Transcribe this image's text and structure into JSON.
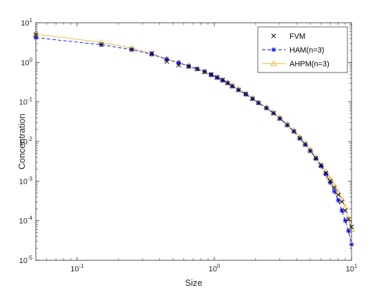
{
  "chart_data": {
    "type": "line",
    "xlabel": "Size",
    "ylabel": "Concentration",
    "xscale": "log",
    "yscale": "log",
    "xlim": [
      0.05,
      10
    ],
    "ylim": [
      1e-05,
      10
    ],
    "grid": false,
    "legend_position": "top-right",
    "x_ticks": [
      {
        "value": 0.1,
        "base": "10",
        "exp": "-1"
      },
      {
        "value": 1,
        "base": "10",
        "exp": "0"
      },
      {
        "value": 10,
        "base": "10",
        "exp": "1"
      }
    ],
    "y_ticks": [
      {
        "value": 1e-05,
        "base": "10",
        "exp": "-5"
      },
      {
        "value": 0.0001,
        "base": "10",
        "exp": "-4"
      },
      {
        "value": 0.001,
        "base": "10",
        "exp": "-3"
      },
      {
        "value": 0.01,
        "base": "10",
        "exp": "-2"
      },
      {
        "value": 0.1,
        "base": "10",
        "exp": "-1"
      },
      {
        "value": 1,
        "base": "10",
        "exp": "0"
      },
      {
        "value": 10,
        "base": "10",
        "exp": "1"
      }
    ],
    "series": [
      {
        "name": "FVM",
        "marker": "x",
        "line": "none",
        "color": "#000000",
        "points": [
          [
            0.05,
            5.0
          ],
          [
            0.15,
            2.8
          ],
          [
            0.25,
            2.1
          ],
          [
            0.35,
            1.7
          ],
          [
            0.45,
            1.05
          ],
          [
            0.55,
            0.85
          ],
          [
            0.65,
            0.78
          ],
          [
            0.75,
            0.68
          ],
          [
            0.85,
            0.58
          ],
          [
            0.95,
            0.5
          ],
          [
            1.05,
            0.42
          ],
          [
            1.15,
            0.36
          ],
          [
            1.25,
            0.3
          ],
          [
            1.35,
            0.25
          ],
          [
            1.5,
            0.2
          ],
          [
            1.7,
            0.16
          ],
          [
            1.9,
            0.12
          ],
          [
            2.1,
            0.095
          ],
          [
            2.4,
            0.07
          ],
          [
            2.7,
            0.052
          ],
          [
            3.0,
            0.038
          ],
          [
            3.4,
            0.026
          ],
          [
            3.8,
            0.018
          ],
          [
            4.2,
            0.012
          ],
          [
            4.6,
            0.0085
          ],
          [
            5.0,
            0.0058
          ],
          [
            5.5,
            0.0038
          ],
          [
            6.0,
            0.0025
          ],
          [
            6.5,
            0.0016
          ],
          [
            7.0,
            0.001
          ],
          [
            7.5,
            0.00068
          ],
          [
            8.0,
            0.00045
          ],
          [
            8.5,
            0.0003
          ],
          [
            9.0,
            0.00018
          ],
          [
            9.5,
            0.00011
          ],
          [
            10.0,
            7e-05
          ]
        ]
      },
      {
        "name": "HAM(n=3)",
        "marker": "*",
        "line": "dashed",
        "color": "#0000ff",
        "points": [
          [
            0.05,
            4.2
          ],
          [
            0.15,
            2.8
          ],
          [
            0.25,
            2.1
          ],
          [
            0.35,
            1.6
          ],
          [
            0.45,
            1.2
          ],
          [
            0.55,
            0.98
          ],
          [
            0.65,
            0.8
          ],
          [
            0.75,
            0.68
          ],
          [
            0.85,
            0.58
          ],
          [
            0.95,
            0.48
          ],
          [
            1.05,
            0.41
          ],
          [
            1.15,
            0.35
          ],
          [
            1.25,
            0.3
          ],
          [
            1.35,
            0.25
          ],
          [
            1.5,
            0.2
          ],
          [
            1.7,
            0.155
          ],
          [
            1.9,
            0.12
          ],
          [
            2.1,
            0.094
          ],
          [
            2.4,
            0.07
          ],
          [
            2.7,
            0.052
          ],
          [
            3.0,
            0.038
          ],
          [
            3.4,
            0.026
          ],
          [
            3.8,
            0.018
          ],
          [
            4.2,
            0.012
          ],
          [
            4.6,
            0.0083
          ],
          [
            5.0,
            0.0058
          ],
          [
            5.5,
            0.0037
          ],
          [
            6.0,
            0.0024
          ],
          [
            6.5,
            0.0015
          ],
          [
            7.0,
            0.00092
          ],
          [
            7.5,
            0.00055
          ],
          [
            8.0,
            0.00033
          ],
          [
            8.5,
            0.00018
          ],
          [
            9.0,
            0.0001
          ],
          [
            9.5,
            5.5e-05
          ],
          [
            10.0,
            2.5e-05
          ]
        ]
      },
      {
        "name": "AHPM(n=3)",
        "marker": "triangle",
        "line": "solid",
        "color": "#e3b53a",
        "points": [
          [
            0.05,
            5.2
          ],
          [
            0.15,
            3.2
          ],
          [
            0.25,
            2.3
          ],
          [
            0.35,
            1.65
          ],
          [
            0.45,
            1.22
          ],
          [
            0.55,
            0.98
          ],
          [
            0.65,
            0.82
          ],
          [
            0.75,
            0.69
          ],
          [
            0.85,
            0.58
          ],
          [
            0.95,
            0.49
          ],
          [
            1.05,
            0.42
          ],
          [
            1.15,
            0.36
          ],
          [
            1.25,
            0.31
          ],
          [
            1.35,
            0.26
          ],
          [
            1.5,
            0.21
          ],
          [
            1.7,
            0.16
          ],
          [
            1.9,
            0.125
          ],
          [
            2.1,
            0.097
          ],
          [
            2.4,
            0.072
          ],
          [
            2.7,
            0.054
          ],
          [
            3.0,
            0.04
          ],
          [
            3.4,
            0.027
          ],
          [
            3.8,
            0.019
          ],
          [
            4.2,
            0.013
          ],
          [
            4.6,
            0.009
          ],
          [
            5.0,
            0.0062
          ],
          [
            5.5,
            0.004
          ],
          [
            6.0,
            0.0026
          ],
          [
            6.5,
            0.0017
          ],
          [
            6.8,
            0.00125
          ],
          [
            7.0,
            0.0011
          ],
          [
            7.3,
            0.0009
          ],
          [
            7.6,
            0.00068
          ],
          [
            8.0,
            0.00052
          ],
          [
            8.5,
            0.00035
          ],
          [
            9.0,
            0.00022
          ],
          [
            9.5,
            0.00011
          ],
          [
            10.0,
            6e-05
          ]
        ]
      }
    ]
  }
}
